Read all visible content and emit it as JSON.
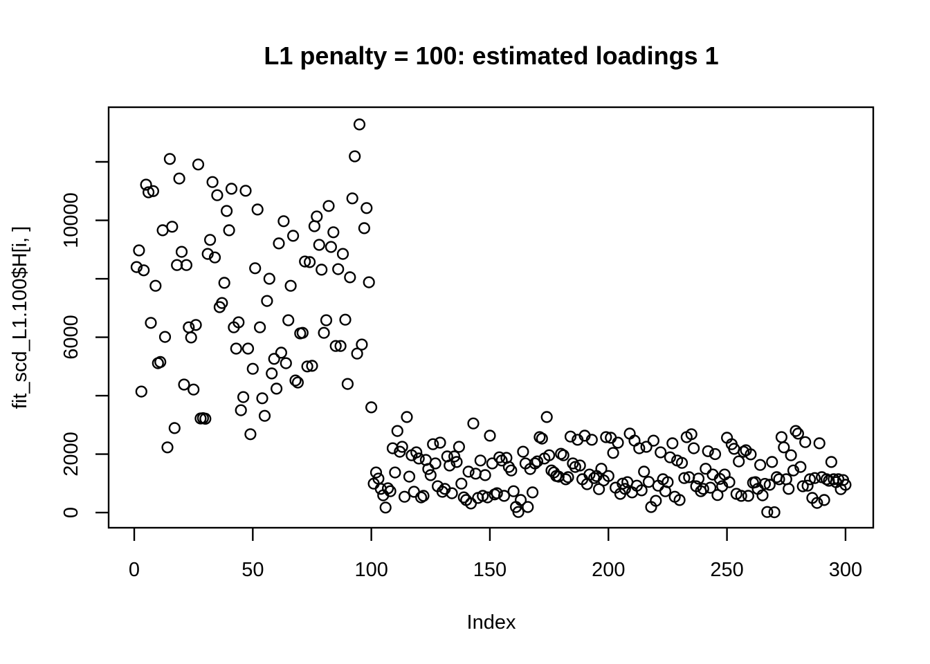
{
  "colors": {
    "foreground": "#000000",
    "background": "#ffffff"
  },
  "chart_data": {
    "type": "scatter",
    "title": "L1 penalty = 100: estimated loadings 1",
    "xlabel": "Index",
    "ylabel": "fit_scd_L1.100$H[i, ]",
    "marker": "open-circle",
    "grid": false,
    "legend": null,
    "x_range": [
      -10.8,
      311.7
    ],
    "y_range": [
      -520,
      13870
    ],
    "x_ticks": [
      {
        "v": 0,
        "label": "0"
      },
      {
        "v": 50,
        "label": "50"
      },
      {
        "v": 100,
        "label": "100"
      },
      {
        "v": 150,
        "label": "150"
      },
      {
        "v": 200,
        "label": "200"
      },
      {
        "v": 250,
        "label": "250"
      },
      {
        "v": 300,
        "label": "300"
      }
    ],
    "y_ticks": [
      {
        "v": 0,
        "label": "0"
      },
      {
        "v": 2000,
        "label": "2000"
      },
      {
        "v": 4000,
        "label": ""
      },
      {
        "v": 6000,
        "label": "6000"
      },
      {
        "v": 8000,
        "label": ""
      },
      {
        "v": 10000,
        "label": "10000"
      },
      {
        "v": 12000,
        "label": ""
      }
    ],
    "points": [
      [
        1,
        8400
      ],
      [
        2,
        8970
      ],
      [
        3,
        4140
      ],
      [
        4,
        8290
      ],
      [
        5,
        11220
      ],
      [
        6,
        10960
      ],
      [
        7,
        6490
      ],
      [
        8,
        11000
      ],
      [
        9,
        7760
      ],
      [
        10,
        5110
      ],
      [
        11,
        5150
      ],
      [
        12,
        9660
      ],
      [
        13,
        6010
      ],
      [
        14,
        2230
      ],
      [
        15,
        12100
      ],
      [
        16,
        9780
      ],
      [
        17,
        2890
      ],
      [
        18,
        8470
      ],
      [
        19,
        11430
      ],
      [
        20,
        8920
      ],
      [
        21,
        4380
      ],
      [
        22,
        8470
      ],
      [
        23,
        6340
      ],
      [
        24,
        5990
      ],
      [
        25,
        4210
      ],
      [
        26,
        6420
      ],
      [
        27,
        11910
      ],
      [
        28,
        3220
      ],
      [
        29,
        3230
      ],
      [
        30,
        3210
      ],
      [
        31,
        8850
      ],
      [
        32,
        9330
      ],
      [
        33,
        11310
      ],
      [
        34,
        8730
      ],
      [
        35,
        10860
      ],
      [
        36,
        7030
      ],
      [
        37,
        7170
      ],
      [
        38,
        7860
      ],
      [
        39,
        10320
      ],
      [
        40,
        9660
      ],
      [
        41,
        11080
      ],
      [
        42,
        6340
      ],
      [
        43,
        5610
      ],
      [
        44,
        6510
      ],
      [
        45,
        3500
      ],
      [
        46,
        3950
      ],
      [
        47,
        11010
      ],
      [
        48,
        5610
      ],
      [
        49,
        2680
      ],
      [
        50,
        4920
      ],
      [
        51,
        8360
      ],
      [
        52,
        10370
      ],
      [
        53,
        6340
      ],
      [
        54,
        3910
      ],
      [
        55,
        3310
      ],
      [
        56,
        7240
      ],
      [
        57,
        8000
      ],
      [
        58,
        4760
      ],
      [
        59,
        5260
      ],
      [
        60,
        4240
      ],
      [
        61,
        9210
      ],
      [
        62,
        5470
      ],
      [
        63,
        9970
      ],
      [
        64,
        5110
      ],
      [
        65,
        6580
      ],
      [
        66,
        7760
      ],
      [
        67,
        9470
      ],
      [
        68,
        4520
      ],
      [
        69,
        4450
      ],
      [
        70,
        6130
      ],
      [
        71,
        6150
      ],
      [
        72,
        8590
      ],
      [
        73,
        5000
      ],
      [
        74,
        8570
      ],
      [
        75,
        5020
      ],
      [
        76,
        9800
      ],
      [
        77,
        10130
      ],
      [
        78,
        9160
      ],
      [
        79,
        8310
      ],
      [
        80,
        6150
      ],
      [
        81,
        6580
      ],
      [
        82,
        10490
      ],
      [
        83,
        9090
      ],
      [
        84,
        9590
      ],
      [
        85,
        5700
      ],
      [
        86,
        8330
      ],
      [
        87,
        5700
      ],
      [
        88,
        8850
      ],
      [
        89,
        6600
      ],
      [
        90,
        4400
      ],
      [
        91,
        8050
      ],
      [
        92,
        10750
      ],
      [
        93,
        12190
      ],
      [
        94,
        5440
      ],
      [
        95,
        13280
      ],
      [
        96,
        5750
      ],
      [
        97,
        9730
      ],
      [
        98,
        10420
      ],
      [
        99,
        7880
      ],
      [
        100,
        3600
      ],
      [
        101,
        990
      ],
      [
        102,
        1370
      ],
      [
        103,
        1160
      ],
      [
        104,
        810
      ],
      [
        105,
        590
      ],
      [
        106,
        170
      ],
      [
        107,
        830
      ],
      [
        108,
        730
      ],
      [
        109,
        2200
      ],
      [
        110,
        1370
      ],
      [
        111,
        2790
      ],
      [
        112,
        2080
      ],
      [
        113,
        2250
      ],
      [
        114,
        540
      ],
      [
        115,
        3270
      ],
      [
        116,
        1230
      ],
      [
        117,
        1960
      ],
      [
        118,
        710
      ],
      [
        119,
        2060
      ],
      [
        120,
        1850
      ],
      [
        121,
        520
      ],
      [
        122,
        570
      ],
      [
        123,
        1800
      ],
      [
        124,
        1490
      ],
      [
        125,
        1280
      ],
      [
        126,
        2340
      ],
      [
        127,
        1680
      ],
      [
        128,
        900
      ],
      [
        129,
        2390
      ],
      [
        130,
        710
      ],
      [
        131,
        810
      ],
      [
        132,
        1920
      ],
      [
        133,
        1610
      ],
      [
        134,
        660
      ],
      [
        135,
        1920
      ],
      [
        136,
        1730
      ],
      [
        137,
        2250
      ],
      [
        138,
        990
      ],
      [
        139,
        520
      ],
      [
        140,
        430
      ],
      [
        141,
        1400
      ],
      [
        142,
        310
      ],
      [
        143,
        3050
      ],
      [
        144,
        1330
      ],
      [
        145,
        500
      ],
      [
        146,
        1780
      ],
      [
        147,
        570
      ],
      [
        148,
        1280
      ],
      [
        149,
        520
      ],
      [
        150,
        2630
      ],
      [
        151,
        1680
      ],
      [
        152,
        620
      ],
      [
        153,
        660
      ],
      [
        154,
        1890
      ],
      [
        155,
        1780
      ],
      [
        156,
        570
      ],
      [
        157,
        1870
      ],
      [
        158,
        1560
      ],
      [
        159,
        1440
      ],
      [
        160,
        730
      ],
      [
        161,
        190
      ],
      [
        162,
        20
      ],
      [
        163,
        430
      ],
      [
        164,
        2080
      ],
      [
        165,
        1680
      ],
      [
        166,
        190
      ],
      [
        167,
        1490
      ],
      [
        168,
        690
      ],
      [
        169,
        1680
      ],
      [
        170,
        1750
      ],
      [
        171,
        2580
      ],
      [
        172,
        2530
      ],
      [
        173,
        1850
      ],
      [
        174,
        3270
      ],
      [
        175,
        1960
      ],
      [
        176,
        1440
      ],
      [
        177,
        1370
      ],
      [
        178,
        1250
      ],
      [
        179,
        1230
      ],
      [
        180,
        2010
      ],
      [
        181,
        1960
      ],
      [
        182,
        1140
      ],
      [
        183,
        1210
      ],
      [
        184,
        2600
      ],
      [
        185,
        1680
      ],
      [
        186,
        1560
      ],
      [
        187,
        2490
      ],
      [
        188,
        1610
      ],
      [
        189,
        1140
      ],
      [
        190,
        2630
      ],
      [
        191,
        970
      ],
      [
        192,
        1300
      ],
      [
        193,
        2490
      ],
      [
        194,
        1180
      ],
      [
        195,
        1250
      ],
      [
        196,
        800
      ],
      [
        197,
        1500
      ],
      [
        198,
        1100
      ],
      [
        199,
        2580
      ],
      [
        200,
        1250
      ],
      [
        201,
        2560
      ],
      [
        202,
        2040
      ],
      [
        203,
        850
      ],
      [
        204,
        2390
      ],
      [
        205,
        640
      ],
      [
        206,
        990
      ],
      [
        207,
        810
      ],
      [
        208,
        1040
      ],
      [
        209,
        2700
      ],
      [
        210,
        690
      ],
      [
        211,
        2460
      ],
      [
        212,
        920
      ],
      [
        213,
        2200
      ],
      [
        214,
        760
      ],
      [
        215,
        1400
      ],
      [
        216,
        2250
      ],
      [
        217,
        1050
      ],
      [
        218,
        190
      ],
      [
        219,
        2460
      ],
      [
        220,
        400
      ],
      [
        221,
        920
      ],
      [
        222,
        2060
      ],
      [
        223,
        1140
      ],
      [
        224,
        730
      ],
      [
        225,
        1040
      ],
      [
        226,
        1890
      ],
      [
        227,
        2370
      ],
      [
        228,
        540
      ],
      [
        229,
        1780
      ],
      [
        230,
        430
      ],
      [
        231,
        1700
      ],
      [
        232,
        1180
      ],
      [
        233,
        2580
      ],
      [
        234,
        1210
      ],
      [
        235,
        2680
      ],
      [
        236,
        2200
      ],
      [
        237,
        900
      ],
      [
        238,
        1160
      ],
      [
        239,
        730
      ],
      [
        240,
        810
      ],
      [
        241,
        1500
      ],
      [
        242,
        2100
      ],
      [
        243,
        850
      ],
      [
        244,
        1300
      ],
      [
        245,
        2000
      ],
      [
        246,
        600
      ],
      [
        247,
        1150
      ],
      [
        248,
        900
      ],
      [
        249,
        1300
      ],
      [
        250,
        2560
      ],
      [
        251,
        1040
      ],
      [
        252,
        2340
      ],
      [
        253,
        2180
      ],
      [
        254,
        640
      ],
      [
        255,
        1750
      ],
      [
        256,
        570
      ],
      [
        257,
        2080
      ],
      [
        258,
        2130
      ],
      [
        259,
        570
      ],
      [
        260,
        1990
      ],
      [
        261,
        1020
      ],
      [
        262,
        1040
      ],
      [
        263,
        810
      ],
      [
        264,
        1630
      ],
      [
        265,
        590
      ],
      [
        266,
        980
      ],
      [
        267,
        20
      ],
      [
        268,
        950
      ],
      [
        269,
        1730
      ],
      [
        270,
        10
      ],
      [
        271,
        1210
      ],
      [
        272,
        1140
      ],
      [
        273,
        2580
      ],
      [
        274,
        2230
      ],
      [
        275,
        1140
      ],
      [
        276,
        810
      ],
      [
        277,
        1960
      ],
      [
        278,
        1440
      ],
      [
        279,
        2790
      ],
      [
        280,
        2700
      ],
      [
        281,
        1560
      ],
      [
        282,
        900
      ],
      [
        283,
        2410
      ],
      [
        284,
        920
      ],
      [
        285,
        1140
      ],
      [
        286,
        500
      ],
      [
        287,
        1180
      ],
      [
        288,
        330
      ],
      [
        289,
        2370
      ],
      [
        290,
        1210
      ],
      [
        291,
        430
      ],
      [
        292,
        1140
      ],
      [
        293,
        1090
      ],
      [
        294,
        1730
      ],
      [
        295,
        1140
      ],
      [
        296,
        1040
      ],
      [
        297,
        1140
      ],
      [
        298,
        800
      ],
      [
        299,
        1110
      ],
      [
        300,
        950
      ]
    ]
  }
}
